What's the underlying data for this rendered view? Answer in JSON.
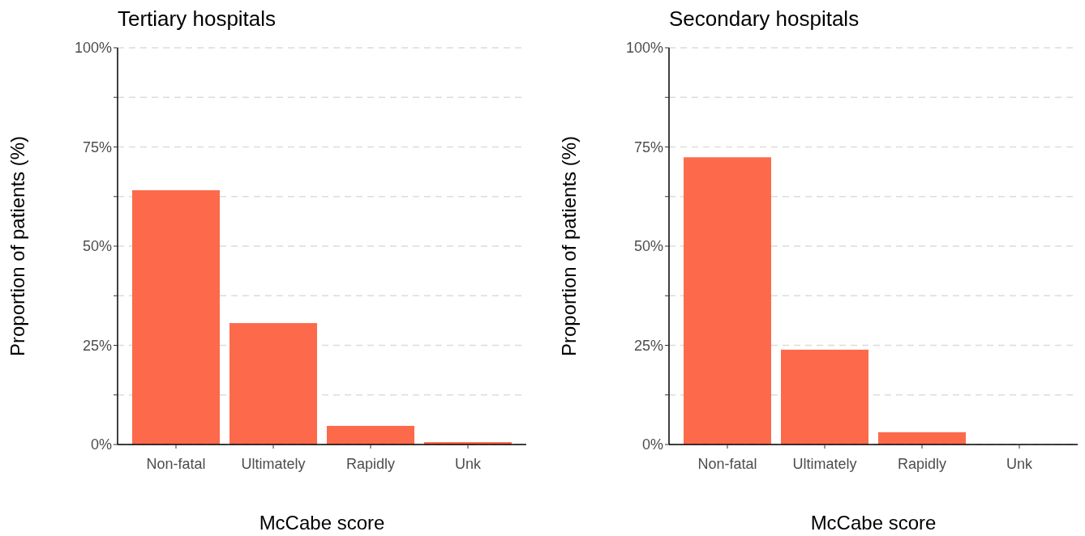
{
  "chart_data": [
    {
      "type": "bar",
      "title": "Tertiary hospitals",
      "xlabel": "McCabe score",
      "ylabel": "Proportion of patients (%)",
      "categories": [
        "Non-fatal",
        "Ultimately",
        "Rapidly",
        "Unk"
      ],
      "values": [
        64.1,
        30.6,
        4.7,
        0.6
      ],
      "color": "#fc6a4b",
      "ylim": [
        0,
        100
      ],
      "yticks": [
        {
          "value": 0,
          "label": "0%"
        },
        {
          "value": 12.5,
          "label": null
        },
        {
          "value": 25,
          "label": "25%"
        },
        {
          "value": 37.5,
          "label": null
        },
        {
          "value": 50,
          "label": "50%"
        },
        {
          "value": 62.5,
          "label": null
        },
        {
          "value": 75,
          "label": "75%"
        },
        {
          "value": 87.5,
          "label": null
        },
        {
          "value": 100,
          "label": "100%"
        }
      ],
      "grid": "y"
    },
    {
      "type": "bar",
      "title": "Secondary hospitals",
      "xlabel": "McCabe score",
      "ylabel": "Proportion of patients (%)",
      "categories": [
        "Non-fatal",
        "Ultimately",
        "Rapidly",
        "Unk"
      ],
      "values": [
        72.4,
        23.9,
        3.1,
        0
      ],
      "color": "#fc6a4b",
      "ylim": [
        0,
        100
      ],
      "yticks": [
        {
          "value": 0,
          "label": "0%"
        },
        {
          "value": 12.5,
          "label": null
        },
        {
          "value": 25,
          "label": "25%"
        },
        {
          "value": 37.5,
          "label": null
        },
        {
          "value": 50,
          "label": "50%"
        },
        {
          "value": 62.5,
          "label": null
        },
        {
          "value": 75,
          "label": "75%"
        },
        {
          "value": 87.5,
          "label": null
        },
        {
          "value": 100,
          "label": "100%"
        }
      ],
      "grid": "y"
    }
  ]
}
